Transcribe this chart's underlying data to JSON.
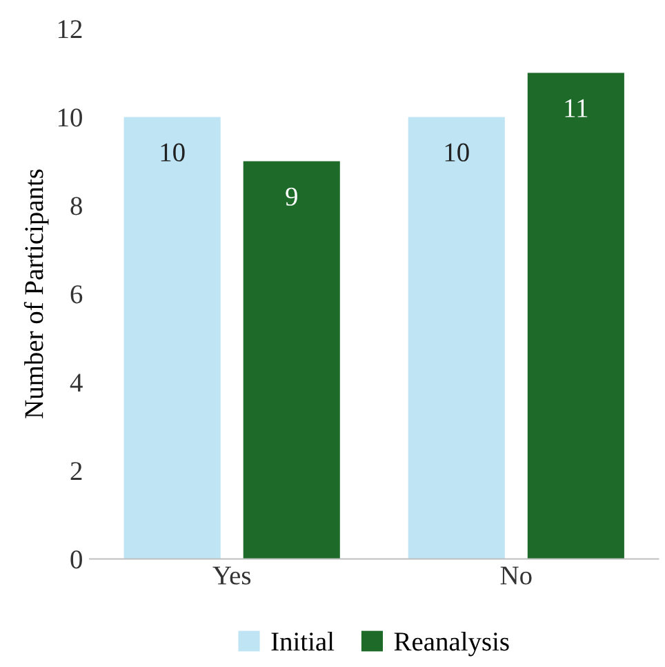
{
  "chart_data": {
    "type": "bar",
    "ylabel": "Number of Participants",
    "categories": [
      "Yes",
      "No"
    ],
    "series": [
      {
        "name": "Initial",
        "color": "#bfe4f4",
        "values": [
          10,
          10
        ]
      },
      {
        "name": "Reanalysis",
        "color": "#1d6a29",
        "values": [
          9,
          11
        ]
      }
    ],
    "ylim": [
      0,
      12
    ],
    "yticks": [
      0,
      2,
      4,
      6,
      8,
      10,
      12
    ],
    "data_labels": true,
    "legend": "bottom",
    "grid": false
  }
}
